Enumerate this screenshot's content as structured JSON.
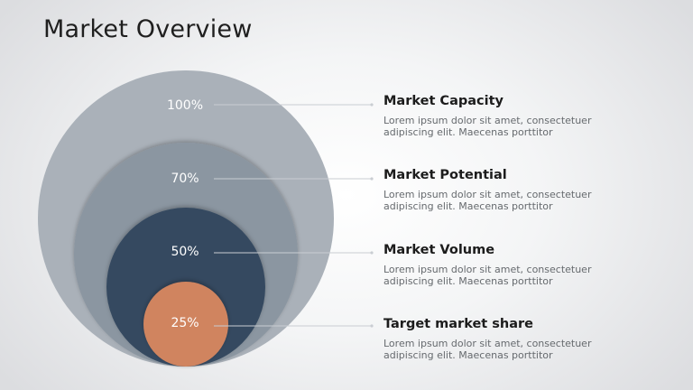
{
  "title": "Market Overview",
  "colors": {
    "capacity": "#aab1b9",
    "potential": "#8b96a1",
    "volume": "#354a60",
    "share": "#d0845f",
    "connector": "#c9cdd2"
  },
  "levels": [
    {
      "percent": "100%",
      "title": "Market Capacity",
      "description": "Lorem ipsum dolor sit amet, consectetuer adipiscing elit. Maecenas porttitor"
    },
    {
      "percent": "70%",
      "title": "Market Potential",
      "description": "Lorem ipsum dolor sit amet, consectetuer adipiscing elit. Maecenas porttitor"
    },
    {
      "percent": "50%",
      "title": "Market Volume",
      "description": "Lorem ipsum dolor sit amet, consectetuer adipiscing elit. Maecenas porttitor"
    },
    {
      "percent": "25%",
      "title": "Target market share",
      "description": "Lorem ipsum dolor sit amet, consectetuer adipiscing elit. Maecenas porttitor"
    }
  ]
}
